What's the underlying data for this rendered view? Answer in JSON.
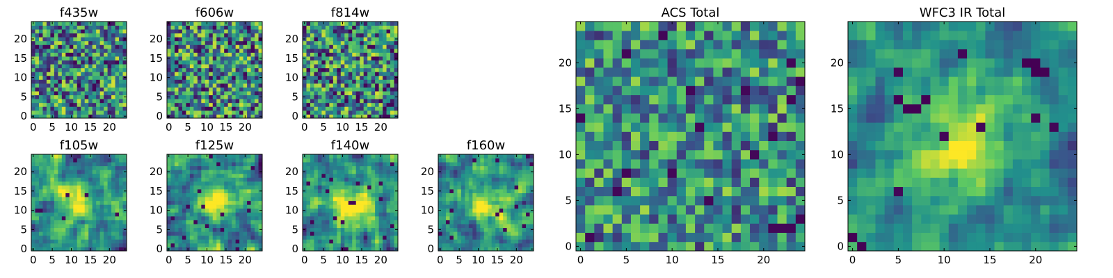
{
  "figure": {
    "description_kind": "grid of 25x25 pixel heatmap cutouts, viridis colormap",
    "colormap": [
      "#440154",
      "#3b528b",
      "#21918c",
      "#5ec962",
      "#fde725"
    ]
  },
  "chart_data": [
    {
      "type": "heatmap",
      "id": "f435w",
      "title": "f435w",
      "grid": [
        25,
        25
      ],
      "xlim": [
        0,
        24
      ],
      "ylim": [
        0,
        24
      ],
      "xticks": [
        0,
        5,
        10,
        15,
        20
      ],
      "yticks": [
        0,
        5,
        10,
        15,
        20
      ],
      "xtick_labels": [
        "0",
        "5",
        "10",
        "15",
        "20"
      ],
      "ytick_labels": [
        "0",
        "5",
        "10",
        "15",
        "20"
      ],
      "pattern": "noise",
      "seed": 11,
      "contrast": 0.55,
      "dark_prob": 0.04
    },
    {
      "type": "heatmap",
      "id": "f606w",
      "title": "f606w",
      "grid": [
        25,
        25
      ],
      "xlim": [
        0,
        24
      ],
      "ylim": [
        0,
        24
      ],
      "xticks": [
        0,
        5,
        10,
        15,
        20
      ],
      "yticks": [
        0,
        5,
        10,
        15,
        20
      ],
      "xtick_labels": [
        "0",
        "5",
        "10",
        "15",
        "20"
      ],
      "ytick_labels": [
        "0",
        "5",
        "10",
        "15",
        "20"
      ],
      "pattern": "noise",
      "seed": 23,
      "contrast": 0.55,
      "dark_prob": 0.05
    },
    {
      "type": "heatmap",
      "id": "f814w",
      "title": "f814w",
      "grid": [
        25,
        25
      ],
      "xlim": [
        0,
        24
      ],
      "ylim": [
        0,
        24
      ],
      "xticks": [
        0,
        5,
        10,
        15,
        20
      ],
      "yticks": [
        0,
        5,
        10,
        15,
        20
      ],
      "xtick_labels": [
        "0",
        "5",
        "10",
        "15",
        "20"
      ],
      "ytick_labels": [
        "0",
        "5",
        "10",
        "15",
        "20"
      ],
      "pattern": "noise",
      "seed": 37,
      "contrast": 0.55,
      "dark_prob": 0.06
    },
    {
      "type": "heatmap",
      "id": "f105w",
      "title": "f105w",
      "grid": [
        25,
        25
      ],
      "xlim": [
        0,
        24
      ],
      "ylim": [
        0,
        24
      ],
      "xticks": [
        0,
        5,
        10,
        15,
        20
      ],
      "yticks": [
        0,
        5,
        10,
        15,
        20
      ],
      "xtick_labels": [
        "0",
        "5",
        "10",
        "15",
        "20"
      ],
      "ytick_labels": [
        "0",
        "5",
        "10",
        "15",
        "20"
      ],
      "pattern": "source",
      "seed": 41,
      "contrast": 0.4,
      "source_center": [
        12,
        12
      ],
      "source_sigma": 3.0,
      "dark_prob": 0.02
    },
    {
      "type": "heatmap",
      "id": "f125w",
      "title": "f125w",
      "grid": [
        25,
        25
      ],
      "xlim": [
        0,
        24
      ],
      "ylim": [
        0,
        24
      ],
      "xticks": [
        0,
        5,
        10,
        15,
        20
      ],
      "yticks": [
        0,
        5,
        10,
        15,
        20
      ],
      "xtick_labels": [
        "0",
        "5",
        "10",
        "15",
        "20"
      ],
      "ytick_labels": [
        "0",
        "5",
        "10",
        "15",
        "20"
      ],
      "pattern": "source",
      "seed": 53,
      "contrast": 0.4,
      "source_center": [
        13,
        12
      ],
      "source_sigma": 3.0,
      "dark_prob": 0.02
    },
    {
      "type": "heatmap",
      "id": "f140w",
      "title": "f140w",
      "grid": [
        25,
        25
      ],
      "xlim": [
        0,
        24
      ],
      "ylim": [
        0,
        24
      ],
      "xticks": [
        0,
        5,
        10,
        15,
        20
      ],
      "yticks": [
        0,
        5,
        10,
        15,
        20
      ],
      "xtick_labels": [
        "0",
        "5",
        "10",
        "15",
        "20"
      ],
      "ytick_labels": [
        "0",
        "5",
        "10",
        "15",
        "20"
      ],
      "pattern": "source",
      "seed": 67,
      "contrast": 0.4,
      "source_center": [
        13,
        11
      ],
      "source_sigma": 3.5,
      "dark_prob": 0.02
    },
    {
      "type": "heatmap",
      "id": "f160w",
      "title": "f160w",
      "grid": [
        25,
        25
      ],
      "xlim": [
        0,
        24
      ],
      "ylim": [
        0,
        24
      ],
      "xticks": [
        0,
        5,
        10,
        15,
        20
      ],
      "yticks": [
        0,
        5,
        10,
        15,
        20
      ],
      "xtick_labels": [
        "0",
        "5",
        "10",
        "15",
        "20"
      ],
      "ytick_labels": [
        "0",
        "5",
        "10",
        "15",
        "20"
      ],
      "pattern": "source",
      "seed": 79,
      "contrast": 0.4,
      "source_center": [
        12,
        11
      ],
      "source_sigma": 3.0,
      "dark_prob": 0.02
    },
    {
      "type": "heatmap",
      "id": "acs-total",
      "title": "ACS Total",
      "grid": [
        25,
        25
      ],
      "xlim": [
        0,
        24
      ],
      "ylim": [
        0,
        24
      ],
      "xticks": [
        0,
        5,
        10,
        15,
        20
      ],
      "yticks": [
        0,
        5,
        10,
        15,
        20
      ],
      "xtick_labels": [
        "0",
        "5",
        "10",
        "15",
        "20"
      ],
      "ytick_labels": [
        "0",
        "5",
        "10",
        "15",
        "20"
      ],
      "pattern": "noise",
      "seed": 97,
      "contrast": 0.45,
      "dark_prob": 0.03
    },
    {
      "type": "heatmap",
      "id": "wfc3-ir-total",
      "title": "WFC3 IR Total",
      "grid": [
        25,
        25
      ],
      "xlim": [
        0,
        24
      ],
      "ylim": [
        0,
        24
      ],
      "xticks": [
        0,
        5,
        10,
        15,
        20
      ],
      "yticks": [
        0,
        5,
        10,
        15,
        20
      ],
      "xtick_labels": [
        "0",
        "5",
        "10",
        "15",
        "20"
      ],
      "ytick_labels": [
        "0",
        "5",
        "10",
        "15",
        "20"
      ],
      "pattern": "source",
      "seed": 113,
      "contrast": 0.3,
      "source_center": [
        12,
        11
      ],
      "source_sigma": 3.2,
      "dark_prob": 0.01,
      "dark_spots": [
        [
          5,
          16
        ],
        [
          6,
          15
        ],
        [
          7,
          15
        ],
        [
          8,
          16
        ],
        [
          20,
          19
        ],
        [
          21,
          19
        ],
        [
          19,
          20
        ],
        [
          20,
          20
        ],
        [
          0,
          1
        ],
        [
          1,
          0
        ]
      ]
    }
  ]
}
